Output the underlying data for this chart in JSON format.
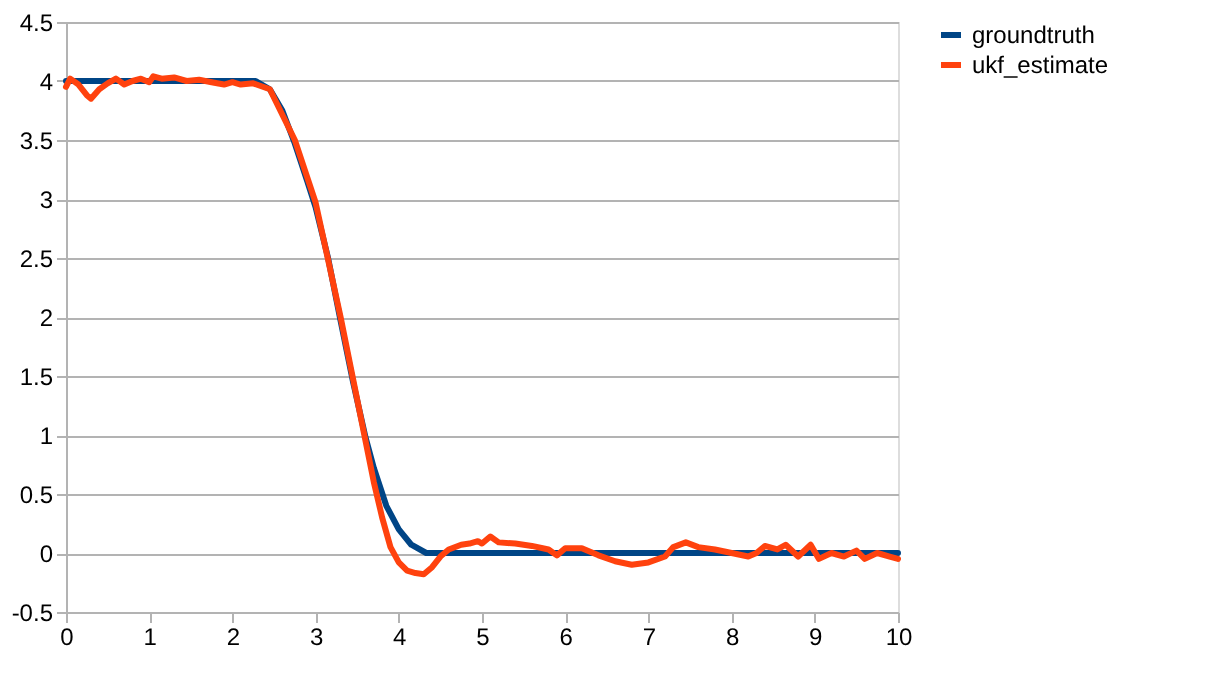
{
  "chart_data": {
    "type": "line",
    "xlim": [
      0,
      10
    ],
    "xticks": [
      0,
      1,
      2,
      3,
      4,
      5,
      6,
      7,
      8,
      9,
      10
    ],
    "ylim": [
      -0.5,
      4.5
    ],
    "yticks": [
      -0.5,
      0,
      0.5,
      1,
      1.5,
      2,
      2.5,
      3,
      3.5,
      4,
      4.5
    ],
    "grid": "y",
    "legend": "right",
    "marker": "none",
    "line_style": "solid",
    "series": [
      {
        "name": "groundtruth",
        "color": "#004586",
        "x": [
          0,
          2.28,
          2.45,
          2.6,
          2.75,
          2.9,
          3.0,
          3.15,
          3.3,
          3.45,
          3.6,
          3.7,
          3.85,
          4.0,
          4.15,
          4.33,
          10
        ],
        "values": [
          4,
          4,
          3.93,
          3.75,
          3.47,
          3.15,
          2.93,
          2.5,
          1.97,
          1.45,
          0.98,
          0.72,
          0.4,
          0.2,
          0.07,
          0,
          0
        ]
      },
      {
        "name": "ukf_estimate",
        "color": "#ff420e",
        "x": [
          0,
          0.05,
          0.15,
          0.25,
          0.3,
          0.4,
          0.5,
          0.6,
          0.7,
          0.8,
          0.9,
          1.0,
          1.05,
          1.15,
          1.3,
          1.45,
          1.6,
          1.75,
          1.9,
          2.0,
          2.1,
          2.25,
          2.45,
          2.75,
          3.0,
          3.3,
          3.6,
          3.7,
          3.8,
          3.9,
          4.0,
          4.1,
          4.2,
          4.3,
          4.4,
          4.5,
          4.6,
          4.75,
          4.85,
          4.95,
          5.0,
          5.1,
          5.2,
          5.4,
          5.6,
          5.8,
          5.9,
          6.0,
          6.2,
          6.4,
          6.6,
          6.8,
          7.0,
          7.2,
          7.3,
          7.45,
          7.6,
          7.8,
          8.0,
          8.2,
          8.3,
          8.4,
          8.55,
          8.65,
          8.8,
          8.95,
          9.05,
          9.2,
          9.35,
          9.5,
          9.6,
          9.75,
          9.9,
          10
        ],
        "values": [
          3.95,
          4.02,
          3.97,
          3.88,
          3.85,
          3.93,
          3.98,
          4.02,
          3.97,
          4.0,
          4.02,
          3.99,
          4.04,
          4.02,
          4.03,
          4.0,
          4.01,
          3.99,
          3.97,
          3.99,
          3.97,
          3.98,
          3.93,
          3.5,
          2.97,
          2.0,
          0.95,
          0.6,
          0.3,
          0.05,
          -0.08,
          -0.15,
          -0.17,
          -0.18,
          -0.12,
          -0.03,
          0.03,
          0.07,
          0.08,
          0.1,
          0.08,
          0.14,
          0.09,
          0.08,
          0.06,
          0.03,
          -0.02,
          0.04,
          0.04,
          -0.02,
          -0.07,
          -0.1,
          -0.08,
          -0.03,
          0.05,
          0.09,
          0.05,
          0.03,
          0.0,
          -0.03,
          0.0,
          0.06,
          0.03,
          0.07,
          -0.03,
          0.07,
          -0.05,
          0.0,
          -0.03,
          0.02,
          -0.05,
          0.0,
          -0.03,
          -0.05
        ]
      }
    ]
  }
}
